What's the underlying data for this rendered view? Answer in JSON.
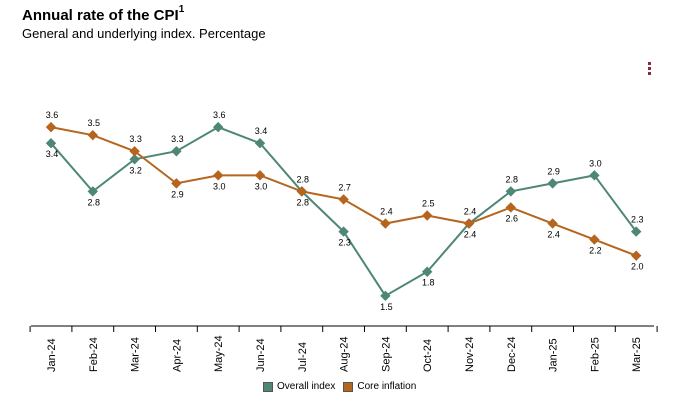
{
  "chart_data": {
    "type": "line",
    "title": "Annual rate of the CPI",
    "title_sup": "1",
    "subtitle": "General and underlying index. Percentage",
    "categories": [
      "Jan-24",
      "Feb-24",
      "Mar-24",
      "Apr-24",
      "May-24",
      "Jun-24",
      "Jul-24",
      "Aug-24",
      "Sep-24",
      "Oct-24",
      "Nov-24",
      "Dec-24",
      "Jan-25",
      "Feb-25",
      "Mar-25"
    ],
    "series": [
      {
        "name": "Overall index",
        "color": "#4e8777",
        "values": [
          3.4,
          2.8,
          3.2,
          3.3,
          3.6,
          3.4,
          2.8,
          2.3,
          1.5,
          1.8,
          2.4,
          2.8,
          2.9,
          3.0,
          2.3
        ]
      },
      {
        "name": "Core inflation",
        "color": "#b5651d",
        "values": [
          3.6,
          3.5,
          3.3,
          2.9,
          3.0,
          3.0,
          2.8,
          2.7,
          2.4,
          2.5,
          2.4,
          2.6,
          2.4,
          2.2,
          2.0
        ]
      }
    ],
    "ylim": [
      1.0,
      4.0
    ],
    "grid": false,
    "legend": "bottom-center",
    "menu_icon": "hamburger-menu-icon"
  }
}
